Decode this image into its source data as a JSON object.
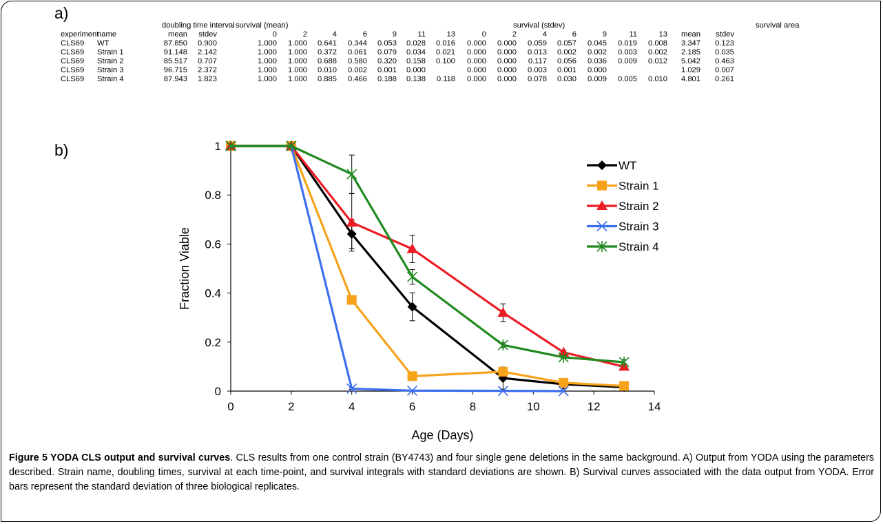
{
  "panel_a_label": "a)",
  "panel_b_label": "b)",
  "table": {
    "group_headers": {
      "doubling": "doubling time interval",
      "survival_mean": "survival (mean)",
      "survival_stdev": "survival (stdev)",
      "survival_area": "survival area"
    },
    "columns": [
      "experiment",
      "name",
      "mean",
      "stdev",
      "0",
      "2",
      "4",
      "6",
      "9",
      "11",
      "13",
      "0",
      "2",
      "4",
      "6",
      "9",
      "11",
      "13",
      "mean",
      "stdev"
    ],
    "rows": [
      [
        "CLS69",
        "WT",
        "87.850",
        "0.900",
        "1.000",
        "1.000",
        "0.641",
        "0.344",
        "0.053",
        "0.028",
        "0.016",
        "0.000",
        "0.000",
        "0.059",
        "0.057",
        "0.045",
        "0.019",
        "0.008",
        "3.347",
        "0.123"
      ],
      [
        "CLS69",
        "Strain 1",
        "91.148",
        "2.142",
        "1.000",
        "1.000",
        "0.372",
        "0.061",
        "0.079",
        "0.034",
        "0.021",
        "0.000",
        "0.000",
        "0.013",
        "0.002",
        "0.002",
        "0.003",
        "0.002",
        "2.185",
        "0.035"
      ],
      [
        "CLS69",
        "Strain 2",
        "85.517",
        "0.707",
        "1.000",
        "1.000",
        "0.688",
        "0.580",
        "0.320",
        "0.158",
        "0.100",
        "0.000",
        "0.000",
        "0.117",
        "0.056",
        "0.036",
        "0.009",
        "0.012",
        "5.042",
        "0.463"
      ],
      [
        "CLS69",
        "Strain 3",
        "96.715",
        "2.372",
        "1.000",
        "1.000",
        "0.010",
        "0.002",
        "0.001",
        "0.000",
        "",
        "0.000",
        "0.000",
        "0.003",
        "0.001",
        "0.000",
        "",
        "",
        "1.029",
        "0.007"
      ],
      [
        "CLS69",
        "Strain 4",
        "87.943",
        "1.823",
        "1.000",
        "1.000",
        "0.885",
        "0.466",
        "0.188",
        "0.138",
        "0.118",
        "0.000",
        "0.000",
        "0.078",
        "0.030",
        "0.009",
        "0.005",
        "0.010",
        "4.801",
        "0.261"
      ]
    ]
  },
  "chart_data": {
    "type": "line",
    "xlabel": "Age (Days)",
    "ylabel": "Fraction Viable",
    "xlim": [
      0,
      14
    ],
    "ylim": [
      0,
      1
    ],
    "xticks": [
      "0",
      "2",
      "4",
      "6",
      "8",
      "10",
      "12",
      "14"
    ],
    "yticks": [
      "0",
      "0.2",
      "0.4",
      "0.6",
      "0.8",
      "1"
    ],
    "grid": false,
    "legend_position": "top-right",
    "series": [
      {
        "name": "WT",
        "color": "#000000",
        "marker": "diamond",
        "x": [
          0,
          2,
          4,
          6,
          9,
          11,
          13
        ],
        "y": [
          1.0,
          1.0,
          0.641,
          0.344,
          0.053,
          0.028,
          0.016
        ],
        "err": [
          0,
          0,
          0.059,
          0.057,
          0.045,
          0.019,
          0.008
        ]
      },
      {
        "name": "Strain 1",
        "color": "#f7a21b",
        "marker": "square",
        "x": [
          0,
          2,
          4,
          6,
          9,
          11,
          13
        ],
        "y": [
          1.0,
          1.0,
          0.372,
          0.061,
          0.079,
          0.034,
          0.021
        ],
        "err": [
          0,
          0,
          0.013,
          0.002,
          0.002,
          0.003,
          0.002
        ]
      },
      {
        "name": "Strain 2",
        "color": "#ec1c24",
        "marker": "triangle",
        "x": [
          0,
          2,
          4,
          6,
          9,
          11,
          13
        ],
        "y": [
          1.0,
          1.0,
          0.688,
          0.58,
          0.32,
          0.158,
          0.1
        ],
        "err": [
          0,
          0,
          0.117,
          0.056,
          0.036,
          0.009,
          0.012
        ]
      },
      {
        "name": "Strain 3",
        "color": "#3b6ff0",
        "marker": "x",
        "x": [
          0,
          2,
          4,
          6,
          9,
          11
        ],
        "y": [
          1.0,
          1.0,
          0.01,
          0.002,
          0.001,
          0.0
        ],
        "err": [
          0,
          0,
          0.003,
          0.001,
          0.0,
          0
        ]
      },
      {
        "name": "Strain 4",
        "color": "#1f8a1f",
        "marker": "star",
        "x": [
          0,
          2,
          4,
          6,
          9,
          11,
          13
        ],
        "y": [
          1.0,
          1.0,
          0.885,
          0.466,
          0.188,
          0.138,
          0.118
        ],
        "err": [
          0,
          0,
          0.078,
          0.03,
          0.009,
          0.005,
          0.01
        ]
      }
    ]
  },
  "caption": {
    "title": "Figure 5 YODA CLS output and survival curves",
    "body": ". CLS results from one control strain (BY4743) and four single gene deletions in the same background. A) Output from YODA using the parameters described. Strain name, doubling times, survival at each time-point, and survival integrals with standard deviations are shown. B) Survival curves associated with the data output from YODA. Error bars represent the standard deviation of three biological replicates."
  }
}
